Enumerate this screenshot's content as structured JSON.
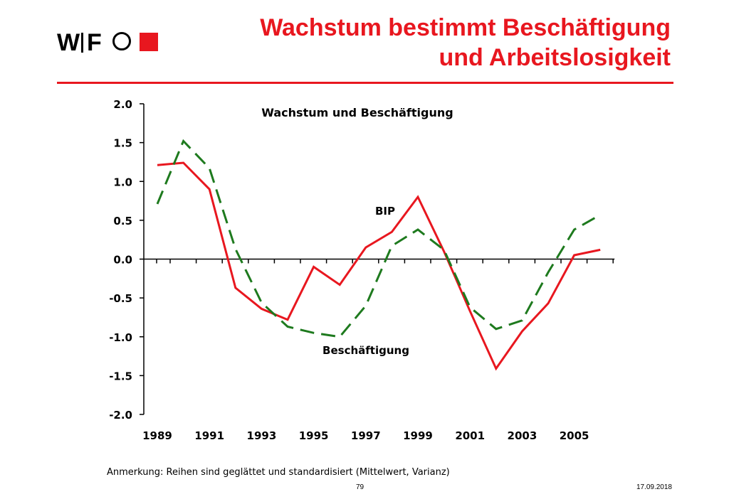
{
  "logo": {
    "w": "W",
    "f": "F"
  },
  "header": {
    "title_line1": "Wachstum bestimmt Beschäftigung",
    "title_line2": "und Arbeitslosigkeit"
  },
  "colors": {
    "accent": "#e8171f",
    "bip": "#e8171f",
    "beschaeftigung": "#1e7a1e"
  },
  "chart_data": {
    "type": "line",
    "title": "Wachstum und Beschäftigung",
    "x": [
      1989,
      1990,
      1991,
      1992,
      1993,
      1994,
      1995,
      1996,
      1997,
      1998,
      1999,
      2000,
      2001,
      2002,
      2003,
      2004,
      2005,
      2006
    ],
    "ylim": [
      -2.0,
      2.0
    ],
    "yticks": [
      "2.0",
      "1.5",
      "1.0",
      "0.5",
      "0.0",
      "-0.5",
      "-1.0",
      "-1.5",
      "-2.0"
    ],
    "xtick_labels": [
      "1989",
      "1991",
      "1993",
      "1995",
      "1997",
      "1999",
      "2001",
      "2003",
      "2005"
    ],
    "series": [
      {
        "name": "BIP",
        "style": "solid",
        "values": [
          1.21,
          1.24,
          0.9,
          -0.37,
          -0.64,
          -0.78,
          -0.1,
          -0.33,
          0.15,
          0.35,
          0.8,
          0.1,
          -0.67,
          -1.41,
          -0.93,
          -0.57,
          0.05,
          0.12
        ]
      },
      {
        "name": "Beschäftigung",
        "style": "dashed",
        "values": [
          0.71,
          1.52,
          1.17,
          0.13,
          -0.56,
          -0.87,
          -0.95,
          -1.0,
          -0.6,
          0.17,
          0.38,
          0.12,
          -0.62,
          -0.9,
          -0.79,
          -0.17,
          0.38,
          0.57
        ]
      }
    ]
  },
  "footer": {
    "note": "Anmerkung: Reihen sind geglättet und standardisiert (Mittelwert, Varianz)",
    "page": "79",
    "date": "17.09.2018"
  }
}
